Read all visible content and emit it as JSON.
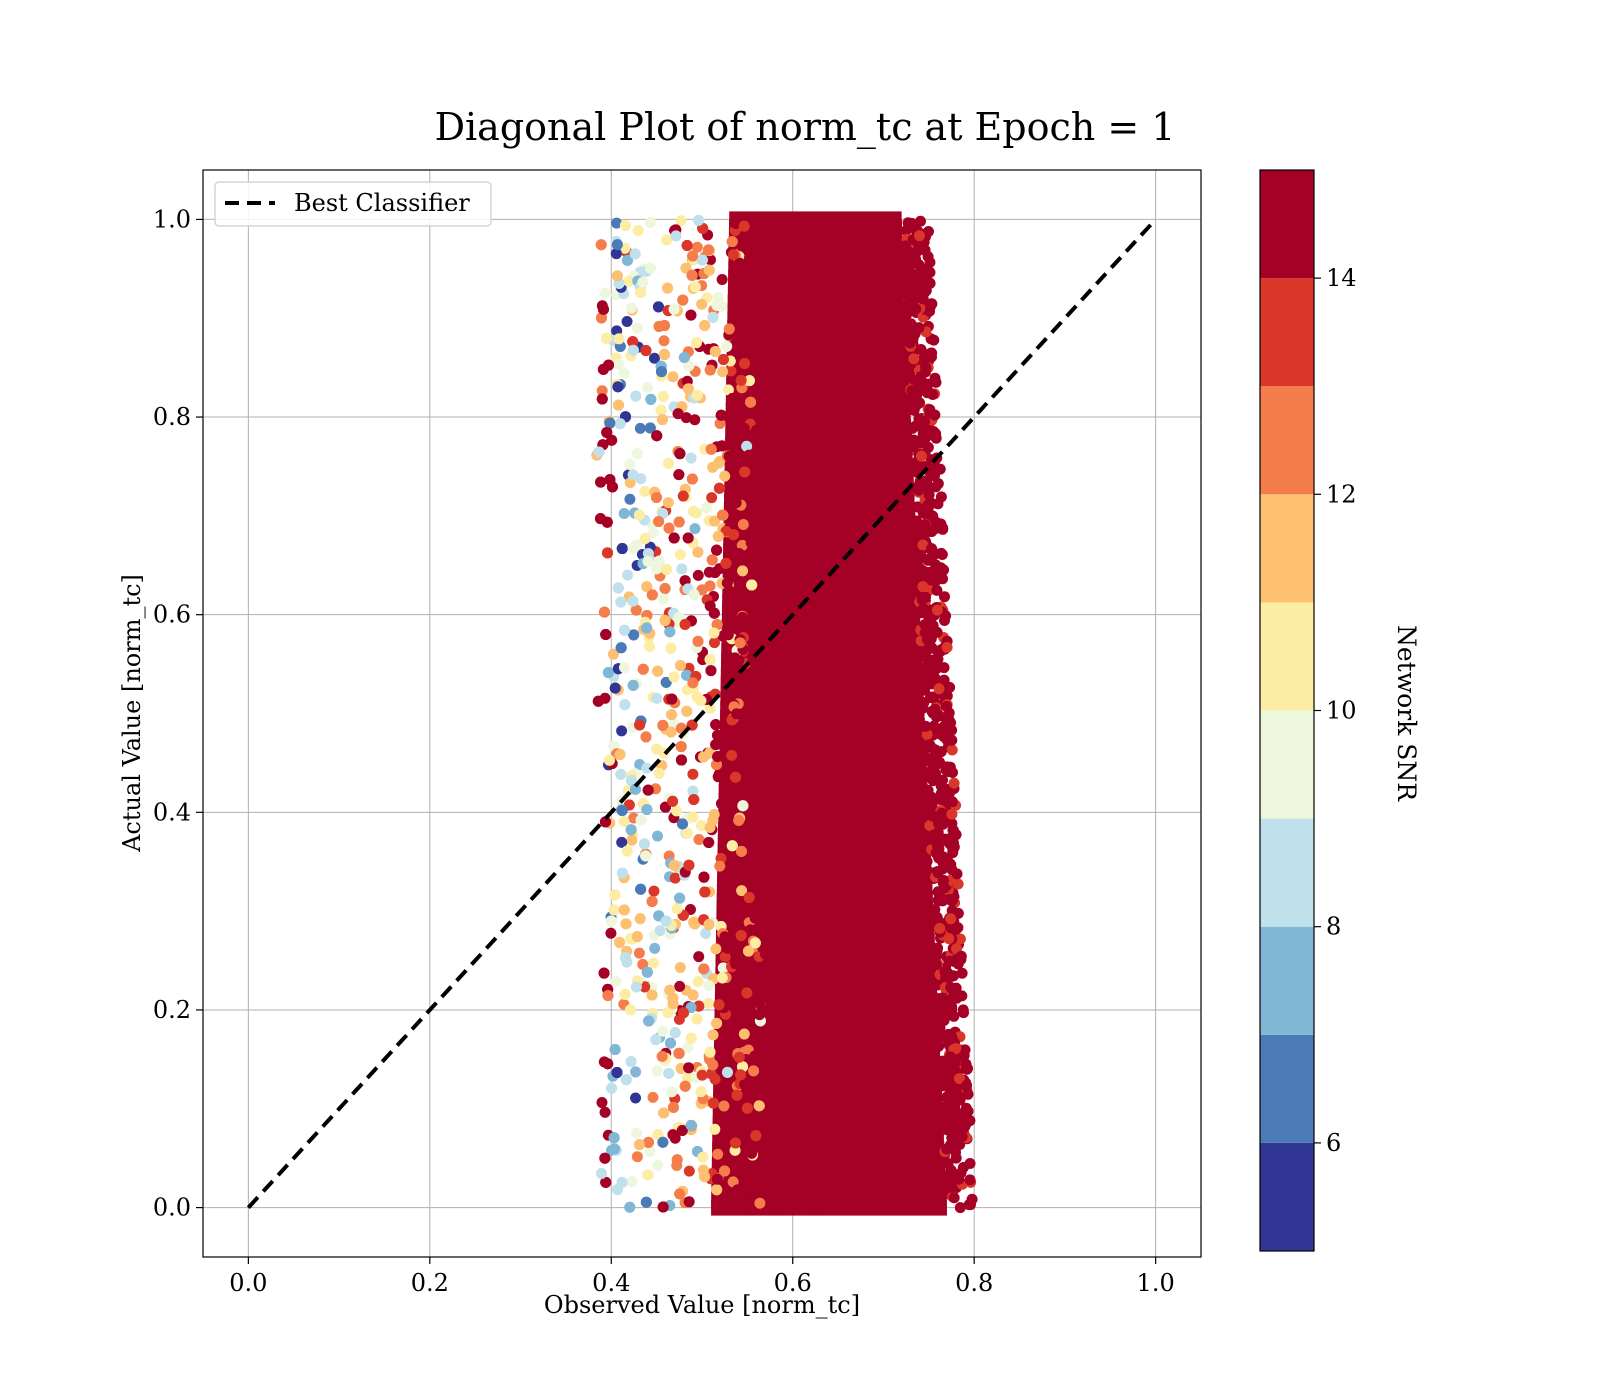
{
  "chart_data": {
    "type": "scatter",
    "title": "Diagonal Plot of norm_tc at Epoch = 1",
    "xlabel": "Observed Value [norm_tc]",
    "ylabel": "Actual Value [norm_tc]",
    "xlim": [
      -0.05,
      1.05
    ],
    "ylim": [
      -0.05,
      1.05
    ],
    "xticks": [
      "0.0",
      "0.2",
      "0.4",
      "0.6",
      "0.8",
      "1.0"
    ],
    "yticks": [
      "0.0",
      "0.2",
      "0.4",
      "0.6",
      "0.8",
      "1.0"
    ],
    "grid": true,
    "legend": {
      "placement": "top-left",
      "entries": [
        "Best Classifier"
      ]
    },
    "reference_line": {
      "name": "Best Classifier",
      "style": "dashed",
      "color": "#000000",
      "x": [
        0.0,
        1.0
      ],
      "y": [
        0.0,
        1.0
      ]
    },
    "scatter_region": {
      "x_range_approx": [
        0.39,
        0.79
      ],
      "y_range_approx": [
        0.0,
        1.0
      ],
      "dominant_color_value": "14-15"
    },
    "colorbar": {
      "label": "Network SNR",
      "range": [
        5,
        15
      ],
      "ticks": [
        "6",
        "8",
        "10",
        "12",
        "14"
      ],
      "bins": [
        {
          "from": 5,
          "to": 6,
          "color": "#313695"
        },
        {
          "from": 6,
          "to": 7,
          "color": "#4a7bb7"
        },
        {
          "from": 7,
          "to": 8,
          "color": "#80b6d6"
        },
        {
          "from": 8,
          "to": 9,
          "color": "#c0e1ec"
        },
        {
          "from": 9,
          "to": 10,
          "color": "#eef7de"
        },
        {
          "from": 10,
          "to": 11,
          "color": "#fdeca3"
        },
        {
          "from": 11,
          "to": 12,
          "color": "#fdbf70"
        },
        {
          "from": 12,
          "to": 13,
          "color": "#f57d4b"
        },
        {
          "from": 13,
          "to": 14,
          "color": "#da372a"
        },
        {
          "from": 14,
          "to": 15,
          "color": "#a50026"
        }
      ]
    }
  }
}
